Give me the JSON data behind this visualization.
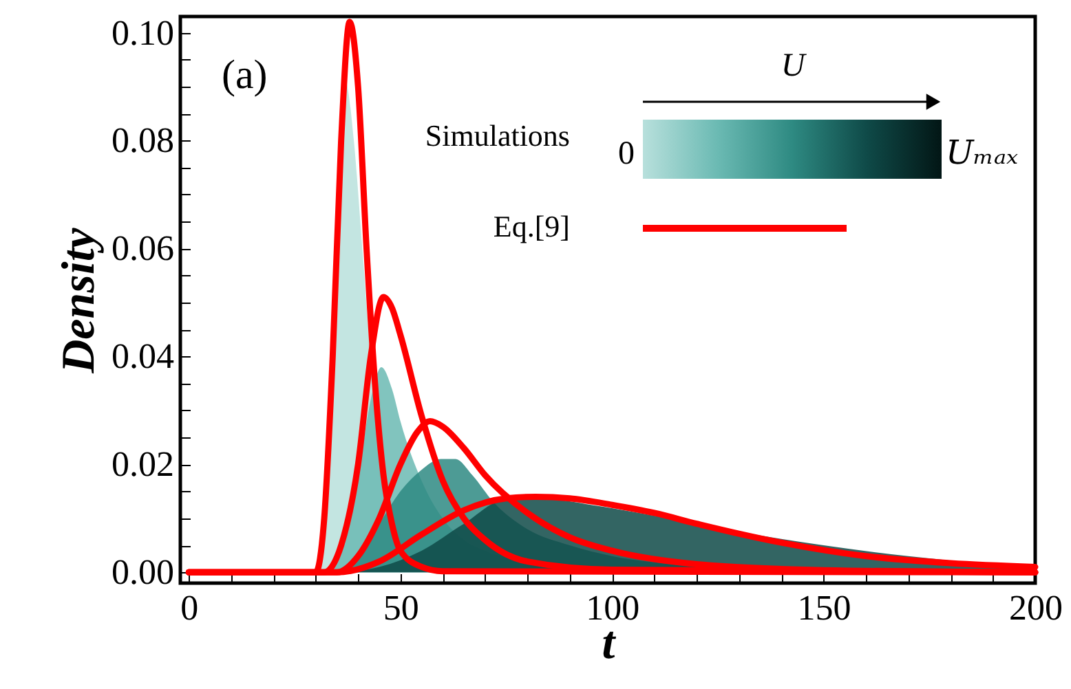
{
  "chart_data": {
    "type": "line",
    "xlabel": "t",
    "ylabel": "Density",
    "annotations": [
      "(a)",
      "Simulations",
      "Eq.[9]",
      "U",
      "0",
      "Uₘₐₓ"
    ],
    "xlim": [
      -2,
      200
    ],
    "xticks": [
      0,
      {
        "value": 10,
        "label": null
      },
      {
        "value": 20,
        "label": null
      },
      {
        "value": 30,
        "label": null
      },
      {
        "value": 40,
        "label": null
      },
      50,
      {
        "value": 60,
        "label": null
      },
      {
        "value": 70,
        "label": null
      },
      {
        "value": 80,
        "label": null
      },
      {
        "value": 90,
        "label": null
      },
      100,
      {
        "value": 110,
        "label": null
      },
      {
        "value": 120,
        "label": null
      },
      {
        "value": 130,
        "label": null
      },
      {
        "value": 140,
        "label": null
      },
      150,
      {
        "value": 160,
        "label": null
      },
      {
        "value": 170,
        "label": null
      },
      {
        "value": 180,
        "label": null
      },
      {
        "value": 190,
        "label": null
      },
      200
    ],
    "ylim": [
      -0.002,
      0.103
    ],
    "yticks": [
      {
        "value": 0,
        "label": "0.00"
      },
      {
        "value": 0.005,
        "label": null
      },
      {
        "value": 0.01,
        "label": null
      },
      {
        "value": 0.015,
        "label": null
      },
      {
        "value": 0.02,
        "label": "0.02"
      },
      {
        "value": 0.025,
        "label": null
      },
      {
        "value": 0.03,
        "label": null
      },
      {
        "value": 0.035,
        "label": null
      },
      {
        "value": 0.04,
        "label": "0.04"
      },
      {
        "value": 0.045,
        "label": null
      },
      {
        "value": 0.05,
        "label": null
      },
      {
        "value": 0.055,
        "label": null
      },
      {
        "value": 0.06,
        "label": "0.06"
      },
      {
        "value": 0.065,
        "label": null
      },
      {
        "value": 0.07,
        "label": null
      },
      {
        "value": 0.075,
        "label": null
      },
      {
        "value": 0.08,
        "label": "0.08"
      },
      {
        "value": 0.085,
        "label": null
      },
      {
        "value": 0.09,
        "label": null
      },
      {
        "value": 0.095,
        "label": null
      },
      {
        "value": 0.1,
        "label": "0.10"
      }
    ],
    "series": [
      {
        "type": "area",
        "color": "#b8e0dc",
        "x": [
          0,
          30,
          32,
          34,
          36,
          37,
          39,
          41,
          43,
          45,
          48,
          50,
          55,
          60,
          70,
          200
        ],
        "values": [
          0,
          0,
          0.01,
          0.045,
          0.088,
          0.091,
          0.08,
          0.06,
          0.04,
          0.025,
          0.012,
          0.007,
          0.002,
          0.0005,
          0,
          0
        ]
      },
      {
        "type": "area",
        "color": "#6bbab3",
        "x": [
          0,
          32,
          36,
          40,
          43,
          45.5,
          48,
          50,
          55,
          60,
          65,
          70,
          80,
          90,
          110,
          200
        ],
        "values": [
          0,
          0,
          0.005,
          0.018,
          0.032,
          0.038,
          0.034,
          0.028,
          0.017,
          0.01,
          0.006,
          0.004,
          0.002,
          0.001,
          0,
          0
        ]
      },
      {
        "type": "area",
        "color": "#2e8a82",
        "x": [
          0,
          35,
          40,
          45,
          50,
          55,
          59.5,
          63,
          67,
          72,
          80,
          90,
          100,
          120,
          140,
          160,
          200
        ],
        "values": [
          0,
          0,
          0.003,
          0.009,
          0.015,
          0.019,
          0.021,
          0.021,
          0.018,
          0.013,
          0.008,
          0.005,
          0.003,
          0.0012,
          0.0004,
          0,
          0
        ]
      },
      {
        "type": "area",
        "color": "#0f4a48",
        "x": [
          0,
          35,
          45,
          55,
          65,
          75,
          85,
          95,
          110,
          130,
          150,
          170,
          190,
          200
        ],
        "values": [
          0,
          0,
          0.001,
          0.004,
          0.009,
          0.0135,
          0.0135,
          0.0125,
          0.0105,
          0.0075,
          0.005,
          0.003,
          0.0015,
          0.001
        ]
      },
      {
        "color": "#ff0000",
        "x": [
          0,
          30,
          32,
          34,
          36,
          38,
          40,
          42,
          44,
          46,
          48,
          50,
          55,
          60,
          200
        ],
        "values": [
          0,
          0,
          0.01,
          0.04,
          0.08,
          0.102,
          0.09,
          0.06,
          0.035,
          0.018,
          0.009,
          0.004,
          0.001,
          0.0002,
          0
        ]
      },
      {
        "color": "#ff0000",
        "x": [
          0,
          32,
          36,
          40,
          43,
          46,
          48,
          50,
          55,
          60,
          65,
          70,
          80,
          100,
          200
        ],
        "values": [
          0,
          0,
          0.005,
          0.02,
          0.04,
          0.051,
          0.049,
          0.044,
          0.029,
          0.017,
          0.01,
          0.006,
          0.002,
          0.0005,
          0
        ]
      },
      {
        "color": "#ff0000",
        "x": [
          0,
          35,
          40,
          45,
          50,
          54,
          57,
          60,
          65,
          70,
          80,
          90,
          100,
          120,
          150,
          200
        ],
        "values": [
          0,
          0,
          0.003,
          0.01,
          0.02,
          0.026,
          0.028,
          0.027,
          0.023,
          0.018,
          0.011,
          0.0065,
          0.004,
          0.0015,
          0.0004,
          0
        ]
      },
      {
        "color": "#ff0000",
        "x": [
          0,
          35,
          45,
          55,
          65,
          75,
          82,
          90,
          100,
          110,
          120,
          140,
          160,
          180,
          200
        ],
        "values": [
          0,
          0,
          0.002,
          0.007,
          0.0115,
          0.0137,
          0.014,
          0.0137,
          0.0125,
          0.011,
          0.009,
          0.0055,
          0.003,
          0.0017,
          0.001
        ]
      }
    ]
  }
}
